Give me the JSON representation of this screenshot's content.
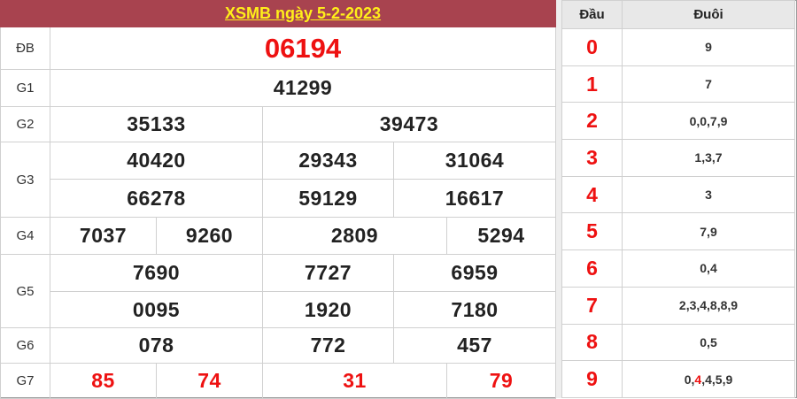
{
  "title": "XSMB ngày 5-2-2023",
  "prizes": {
    "db": {
      "label": "ĐB",
      "numbers": [
        "06194"
      ]
    },
    "g1": {
      "label": "G1",
      "numbers": [
        "41299"
      ]
    },
    "g2": {
      "label": "G2",
      "numbers": [
        "35133",
        "39473"
      ]
    },
    "g3": {
      "label": "G3",
      "numbers": [
        "40420",
        "29343",
        "31064",
        "66278",
        "59129",
        "16617"
      ]
    },
    "g4": {
      "label": "G4",
      "numbers": [
        "7037",
        "9260",
        "2809",
        "5294"
      ]
    },
    "g5": {
      "label": "G5",
      "numbers": [
        "7690",
        "7727",
        "6959",
        "0095",
        "1920",
        "7180"
      ]
    },
    "g6": {
      "label": "G6",
      "numbers": [
        "078",
        "772",
        "457"
      ]
    },
    "g7": {
      "label": "G7",
      "numbers": [
        "85",
        "74",
        "31",
        "79"
      ]
    }
  },
  "loto": {
    "head_label": "Đầu",
    "tail_label": "Đuôi",
    "rows": [
      {
        "head": "0",
        "tail": "9"
      },
      {
        "head": "1",
        "tail": "7"
      },
      {
        "head": "2",
        "tail": "0,0,7,9"
      },
      {
        "head": "3",
        "tail": "1,3,7"
      },
      {
        "head": "4",
        "tail": "3"
      },
      {
        "head": "5",
        "tail": "7,9"
      },
      {
        "head": "6",
        "tail": "0,4"
      },
      {
        "head": "7",
        "tail": "2,3,4,8,8,9"
      },
      {
        "head": "8",
        "tail": "0,5"
      },
      {
        "head": "9",
        "tail_parts": [
          "0,",
          "4",
          ",4,5,9"
        ]
      }
    ]
  },
  "colors": {
    "header_bg": "#a8434f",
    "title": "#ffef1a",
    "highlight": "#ee1111"
  }
}
